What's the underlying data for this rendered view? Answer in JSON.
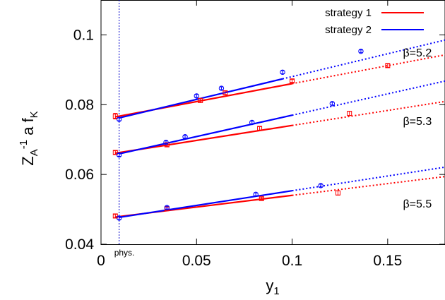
{
  "chart_data": {
    "type": "scatter",
    "xlabel": "y",
    "xlabel_sub": "1",
    "ylabel_parts": {
      "z": "Z",
      "z_sub": "A",
      "z_sup": "-1",
      "rest": " a f",
      "rest_sub": "K"
    },
    "xlim": [
      0,
      0.18
    ],
    "ylim": [
      0.04,
      0.11
    ],
    "xticks": [
      0,
      0.05,
      0.1,
      0.15
    ],
    "xtick_labels": [
      "0",
      "0.05",
      "0.1",
      "0.15"
    ],
    "yticks": [
      0.04,
      0.06,
      0.08,
      0.1
    ],
    "ytick_labels": [
      "0.04",
      "0.06",
      "0.08",
      "0.1"
    ],
    "physical_point": {
      "x": 0.0095,
      "label": "phys."
    },
    "legend": [
      {
        "name": "strategy 1",
        "color": "#ff0000"
      },
      {
        "name": "strategy 2",
        "color": "#0000ff"
      }
    ],
    "groups": [
      {
        "label": "β=5.2",
        "label_pos": [
          0.158,
          0.0938
        ],
        "strategy1_fit": {
          "x0": 0.0075,
          "y0": 0.0765,
          "slope": 0.103,
          "solid_to": 0.1
        },
        "strategy2_fit": {
          "x0": 0.0095,
          "y0": 0.0762,
          "slope": 0.1309,
          "solid_to": 0.095
        },
        "strategy1_points": [
          {
            "x": 0.0075,
            "y": 0.0767,
            "err": 0.0008
          },
          {
            "x": 0.052,
            "y": 0.0812,
            "err": 0.0006
          },
          {
            "x": 0.065,
            "y": 0.0834,
            "err": 0.0005
          },
          {
            "x": 0.1,
            "y": 0.0868,
            "err": 0.0004
          },
          {
            "x": 0.15,
            "y": 0.0912,
            "err": 0.0005
          }
        ],
        "strategy2_points": [
          {
            "x": 0.0095,
            "y": 0.0758,
            "err": 0.0004
          },
          {
            "x": 0.05,
            "y": 0.0825,
            "err": 0.0004
          },
          {
            "x": 0.063,
            "y": 0.0847,
            "err": 0.0004
          },
          {
            "x": 0.095,
            "y": 0.0893,
            "err": 0.0004
          },
          {
            "x": 0.136,
            "y": 0.0953,
            "err": 0.0004
          }
        ]
      },
      {
        "label": "β=5.3",
        "label_pos": [
          0.158,
          0.0742
        ],
        "strategy1_fit": {
          "x0": 0.0075,
          "y0": 0.0661,
          "slope": 0.0859,
          "solid_to": 0.1
        },
        "strategy2_fit": {
          "x0": 0.0095,
          "y0": 0.0659,
          "slope": 0.1224,
          "solid_to": 0.1
        },
        "strategy1_points": [
          {
            "x": 0.0075,
            "y": 0.0663,
            "err": 0.0005
          },
          {
            "x": 0.0345,
            "y": 0.0685,
            "err": 0.0005
          },
          {
            "x": 0.083,
            "y": 0.0732,
            "err": 0.0005
          },
          {
            "x": 0.13,
            "y": 0.0775,
            "err": 0.0006
          }
        ],
        "strategy2_points": [
          {
            "x": 0.0095,
            "y": 0.0656,
            "err": 0.0004
          },
          {
            "x": 0.034,
            "y": 0.0692,
            "err": 0.0004
          },
          {
            "x": 0.044,
            "y": 0.0708,
            "err": 0.0004
          },
          {
            "x": 0.079,
            "y": 0.0749,
            "err": 0.0004
          },
          {
            "x": 0.121,
            "y": 0.0803,
            "err": 0.0004
          }
        ]
      },
      {
        "label": "β=5.5",
        "label_pos": [
          0.158,
          0.0505
        ],
        "strategy1_fit": {
          "x0": 0.0075,
          "y0": 0.0478,
          "slope": 0.0672,
          "solid_to": 0.1
        },
        "strategy2_fit": {
          "x0": 0.0095,
          "y0": 0.0477,
          "slope": 0.0844,
          "solid_to": 0.1
        },
        "strategy1_points": [
          {
            "x": 0.0075,
            "y": 0.0481,
            "err": 0.0005
          },
          {
            "x": 0.0345,
            "y": 0.0502,
            "err": 0.0004
          },
          {
            "x": 0.084,
            "y": 0.0531,
            "err": 0.0004
          },
          {
            "x": 0.124,
            "y": 0.0547,
            "err": 0.0006
          }
        ],
        "strategy2_points": [
          {
            "x": 0.0095,
            "y": 0.0475,
            "err": 0.0004
          },
          {
            "x": 0.0345,
            "y": 0.0505,
            "err": 0.0004
          },
          {
            "x": 0.081,
            "y": 0.0543,
            "err": 0.0004
          },
          {
            "x": 0.115,
            "y": 0.0568,
            "err": 0.0004
          }
        ]
      }
    ]
  }
}
